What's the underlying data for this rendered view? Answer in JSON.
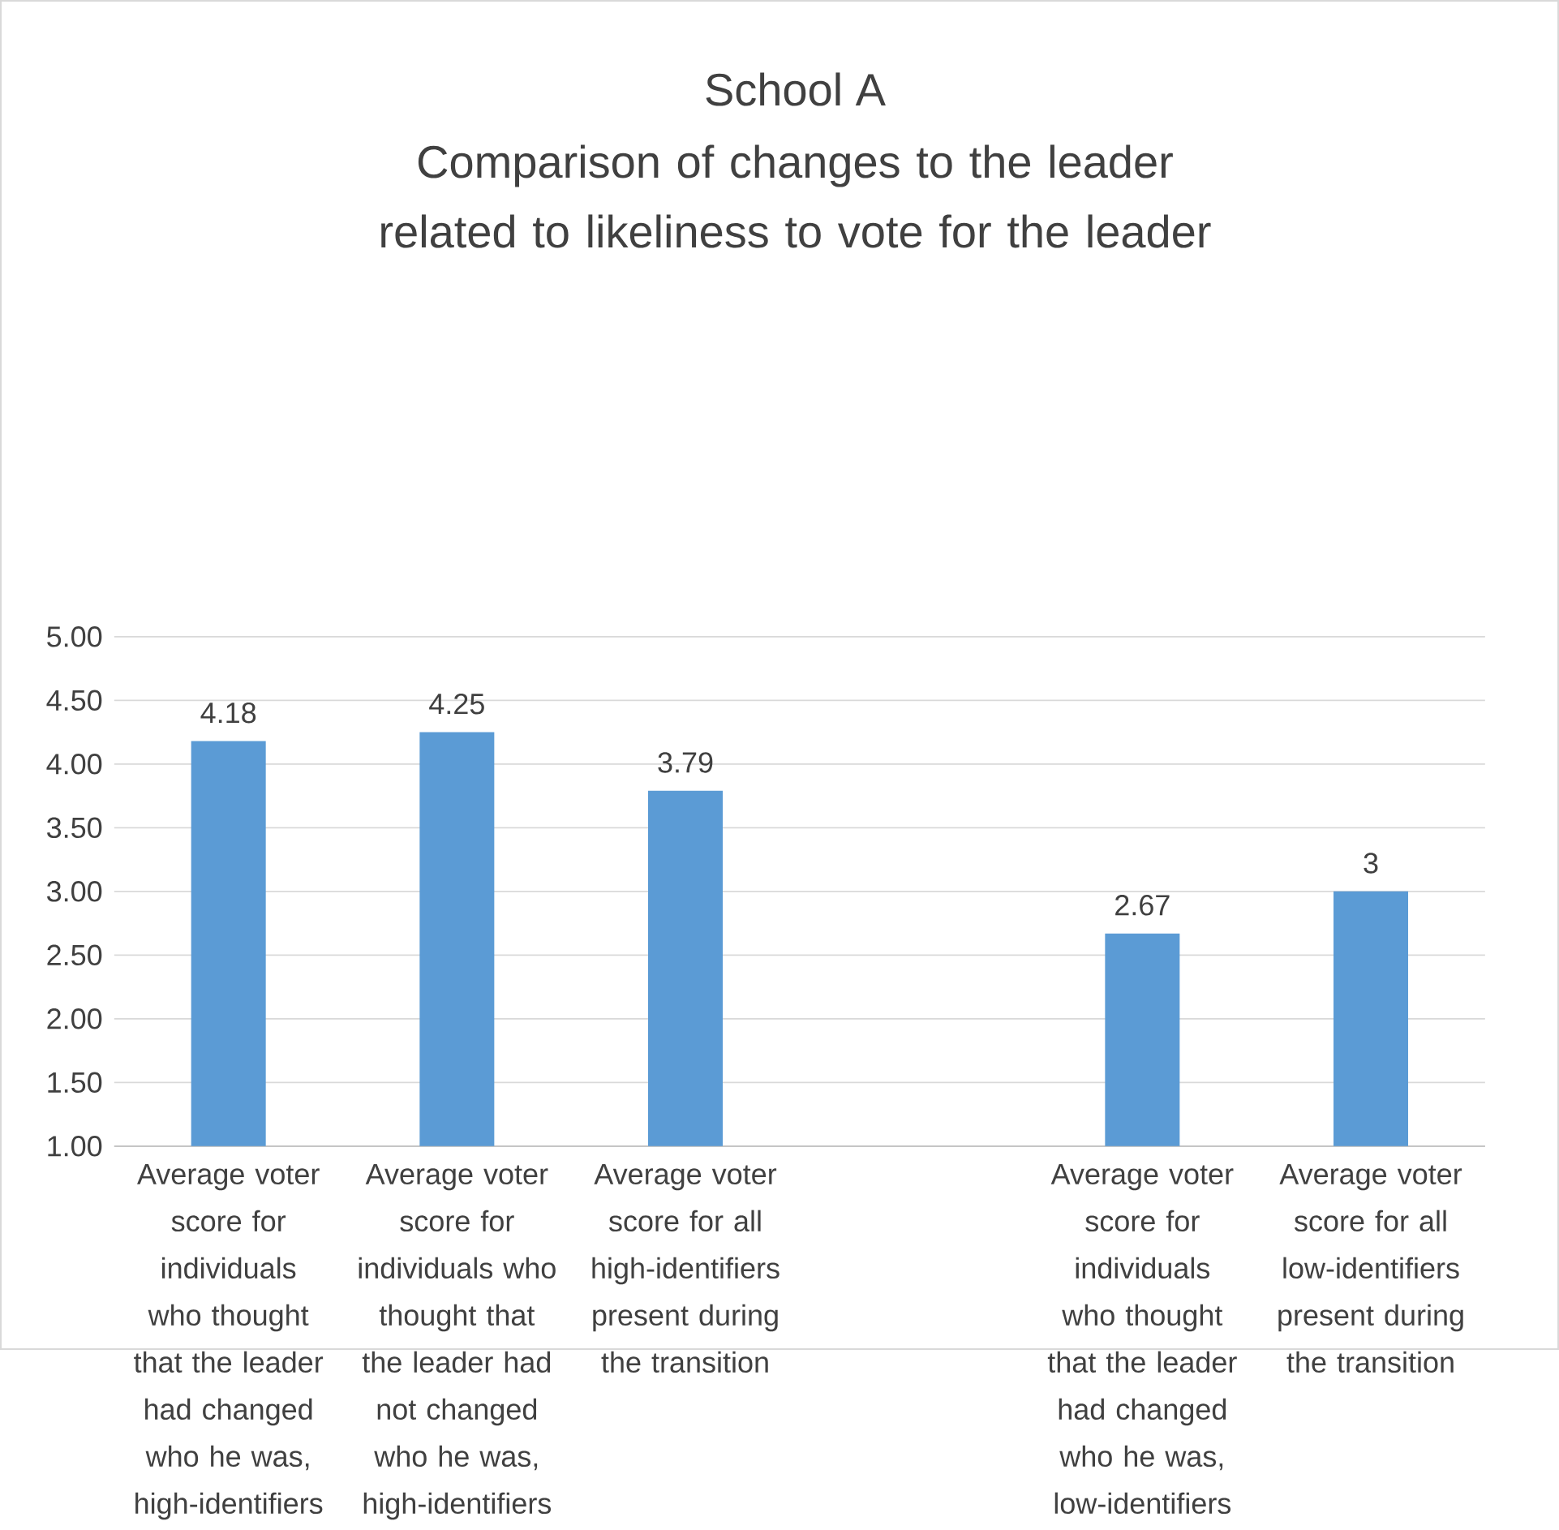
{
  "chart_data": {
    "type": "bar",
    "title": "School A",
    "subtitle": "Comparison of changes to the leader related to likeliness to vote for the leader",
    "categories": [
      "Average voter score for individuals who thought that the leader had changed who he was, high-identifiers",
      "Average voter score for individuals who thought that the leader had not changed who he was, high-identifiers",
      "Average voter score for all high-identifiers present during the transition",
      null,
      "Average voter score for individuals who thought that the leader had changed who he was, low-identifiers",
      "Average voter score for all low-identifiers present during the transition"
    ],
    "values": [
      4.18,
      4.25,
      3.79,
      null,
      2.67,
      3
    ],
    "color": "#5b9bd5",
    "ylim": [
      1,
      5
    ],
    "yticks": [
      {
        "value": 1,
        "label": "1.00"
      },
      {
        "value": 1.5,
        "label": "1.50"
      },
      {
        "value": 2,
        "label": "2.00"
      },
      {
        "value": 2.5,
        "label": "2.50"
      },
      {
        "value": 3,
        "label": "3.00"
      },
      {
        "value": 3.5,
        "label": "3.50"
      },
      {
        "value": 4,
        "label": "4.00"
      },
      {
        "value": 4.5,
        "label": "4.50"
      },
      {
        "value": 5,
        "label": "5.00"
      }
    ],
    "grid": "y",
    "data_labels": true
  }
}
